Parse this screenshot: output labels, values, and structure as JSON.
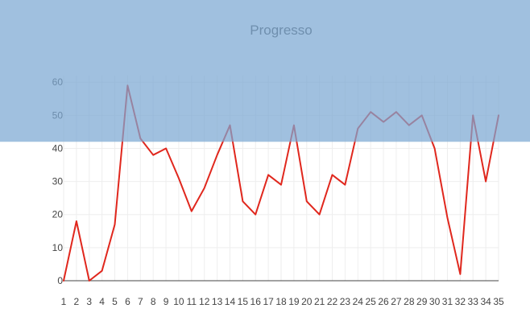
{
  "colors": {
    "line": "#e0271d",
    "overlay": "#7ba8d3",
    "overlay_opacity": 0.72,
    "title": "#6f8fae",
    "grid": "#eeeeee",
    "axis": "#444444",
    "tick_text": "#444444"
  },
  "chart_data": {
    "type": "line",
    "title": "Progresso",
    "xlabel": "",
    "ylabel": "",
    "x": [
      1,
      2,
      3,
      4,
      5,
      6,
      7,
      8,
      9,
      10,
      11,
      12,
      13,
      14,
      15,
      16,
      17,
      18,
      19,
      20,
      21,
      22,
      23,
      24,
      25,
      26,
      27,
      28,
      29,
      30,
      31,
      32,
      33,
      34,
      35
    ],
    "series": [
      {
        "values": [
          0,
          18,
          0,
          3,
          17,
          59,
          43,
          38,
          40,
          31,
          21,
          28,
          38,
          47,
          24,
          20,
          32,
          29,
          47,
          24,
          20,
          32,
          29,
          46,
          51,
          48,
          51,
          47,
          50,
          40,
          19,
          2,
          50,
          30,
          50
        ]
      }
    ],
    "xlim": [
      1,
      35
    ],
    "ylim": [
      0,
      62
    ],
    "yticks": [
      0,
      10,
      20,
      30,
      40,
      50,
      60
    ],
    "xticks": [
      1,
      2,
      3,
      4,
      5,
      6,
      7,
      8,
      9,
      10,
      11,
      12,
      13,
      14,
      15,
      16,
      17,
      18,
      19,
      20,
      21,
      22,
      23,
      24,
      25,
      26,
      27,
      28,
      29,
      30,
      31,
      32,
      33,
      34,
      35
    ],
    "grid": true,
    "legend": "none",
    "overlay_from_y": 42
  }
}
